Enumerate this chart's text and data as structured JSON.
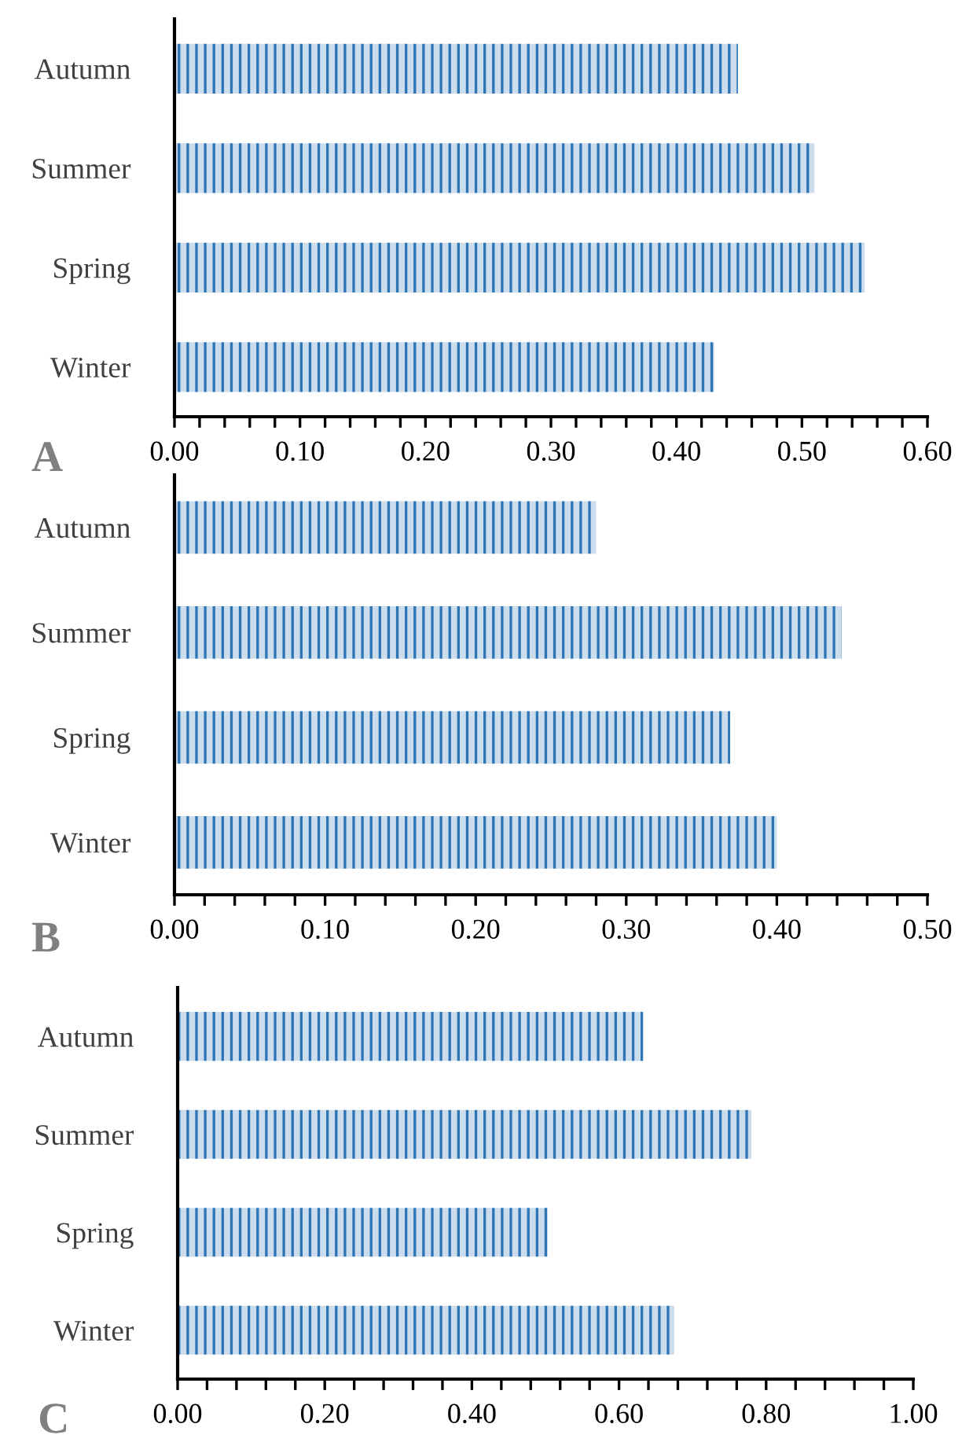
{
  "chart_data": [
    {
      "type": "bar",
      "orientation": "horizontal",
      "categories": [
        "Autumn",
        "Summer",
        "Spring",
        "Winter"
      ],
      "values": [
        0.449,
        0.51,
        0.55,
        0.43
      ],
      "color": "#2e75b6",
      "xlim": [
        0,
        0.6
      ],
      "xticks": [
        {
          "value": 0,
          "label": "0.00"
        },
        {
          "value": 0.02,
          "label": null
        },
        {
          "value": 0.04,
          "label": null
        },
        {
          "value": 0.06,
          "label": null
        },
        {
          "value": 0.08,
          "label": null
        },
        {
          "value": 0.1,
          "label": "0.10"
        },
        {
          "value": 0.12,
          "label": null
        },
        {
          "value": 0.14,
          "label": null
        },
        {
          "value": 0.16,
          "label": null
        },
        {
          "value": 0.18,
          "label": null
        },
        {
          "value": 0.2,
          "label": "0.20"
        },
        {
          "value": 0.22,
          "label": null
        },
        {
          "value": 0.24,
          "label": null
        },
        {
          "value": 0.26,
          "label": null
        },
        {
          "value": 0.28,
          "label": null
        },
        {
          "value": 0.3,
          "label": "0.30"
        },
        {
          "value": 0.32,
          "label": null
        },
        {
          "value": 0.34,
          "label": null
        },
        {
          "value": 0.36,
          "label": null
        },
        {
          "value": 0.38,
          "label": null
        },
        {
          "value": 0.4,
          "label": "0.40"
        },
        {
          "value": 0.42,
          "label": null
        },
        {
          "value": 0.44,
          "label": null
        },
        {
          "value": 0.46,
          "label": null
        },
        {
          "value": 0.48,
          "label": null
        },
        {
          "value": 0.5,
          "label": "0.50"
        },
        {
          "value": 0.52,
          "label": null
        },
        {
          "value": 0.54,
          "label": null
        },
        {
          "value": 0.56,
          "label": null
        },
        {
          "value": 0.58,
          "label": null
        },
        {
          "value": 0.6,
          "label": "0.60"
        }
      ],
      "grid": false,
      "annotations": [
        "A"
      ]
    },
    {
      "type": "bar",
      "orientation": "horizontal",
      "categories": [
        "Autumn",
        "Summer",
        "Spring",
        "Winter"
      ],
      "values": [
        0.28,
        0.443,
        0.369,
        0.4
      ],
      "color": "#2e75b6",
      "xlim": [
        0,
        0.5
      ],
      "xticks": [
        {
          "value": 0,
          "label": "0.00"
        },
        {
          "value": 0.02,
          "label": null
        },
        {
          "value": 0.04,
          "label": null
        },
        {
          "value": 0.06,
          "label": null
        },
        {
          "value": 0.08,
          "label": null
        },
        {
          "value": 0.1,
          "label": "0.10"
        },
        {
          "value": 0.12,
          "label": null
        },
        {
          "value": 0.14,
          "label": null
        },
        {
          "value": 0.16,
          "label": null
        },
        {
          "value": 0.18,
          "label": null
        },
        {
          "value": 0.2,
          "label": "0.20"
        },
        {
          "value": 0.22,
          "label": null
        },
        {
          "value": 0.24,
          "label": null
        },
        {
          "value": 0.26,
          "label": null
        },
        {
          "value": 0.28,
          "label": null
        },
        {
          "value": 0.3,
          "label": "0.30"
        },
        {
          "value": 0.32,
          "label": null
        },
        {
          "value": 0.34,
          "label": null
        },
        {
          "value": 0.36,
          "label": null
        },
        {
          "value": 0.38,
          "label": null
        },
        {
          "value": 0.4,
          "label": "0.40"
        },
        {
          "value": 0.42,
          "label": null
        },
        {
          "value": 0.44,
          "label": null
        },
        {
          "value": 0.46,
          "label": null
        },
        {
          "value": 0.48,
          "label": null
        },
        {
          "value": 0.5,
          "label": "0.50"
        }
      ],
      "grid": false,
      "annotations": [
        "B"
      ]
    },
    {
      "type": "bar",
      "orientation": "horizontal",
      "categories": [
        "Autumn",
        "Summer",
        "Spring",
        "Winter"
      ],
      "values": [
        0.633,
        0.78,
        0.503,
        0.675
      ],
      "color": "#2e75b6",
      "xlim": [
        0,
        1.0
      ],
      "xticks": [
        {
          "value": 0,
          "label": "0.00"
        },
        {
          "value": 0.04,
          "label": null
        },
        {
          "value": 0.08,
          "label": null
        },
        {
          "value": 0.12,
          "label": null
        },
        {
          "value": 0.16,
          "label": null
        },
        {
          "value": 0.2,
          "label": "0.20"
        },
        {
          "value": 0.24,
          "label": null
        },
        {
          "value": 0.28,
          "label": null
        },
        {
          "value": 0.32,
          "label": null
        },
        {
          "value": 0.36,
          "label": null
        },
        {
          "value": 0.4,
          "label": "0.40"
        },
        {
          "value": 0.44,
          "label": null
        },
        {
          "value": 0.48,
          "label": null
        },
        {
          "value": 0.52,
          "label": null
        },
        {
          "value": 0.56,
          "label": null
        },
        {
          "value": 0.6,
          "label": "0.60"
        },
        {
          "value": 0.64,
          "label": null
        },
        {
          "value": 0.68,
          "label": null
        },
        {
          "value": 0.72,
          "label": null
        },
        {
          "value": 0.76,
          "label": null
        },
        {
          "value": 0.8,
          "label": "0.80"
        },
        {
          "value": 0.84,
          "label": null
        },
        {
          "value": 0.88,
          "label": null
        },
        {
          "value": 0.92,
          "label": null
        },
        {
          "value": 0.96,
          "label": null
        },
        {
          "value": 1.0,
          "label": "1.00"
        }
      ],
      "grid": false,
      "annotations": [
        "C"
      ]
    }
  ]
}
